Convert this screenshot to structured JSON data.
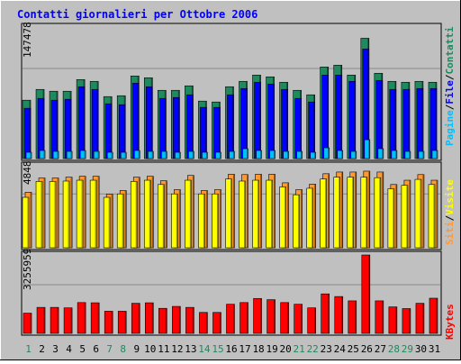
{
  "chart_data": [
    {
      "type": "bar",
      "title": "Contatti giornalieri per Ottobre 2006",
      "x": [
        "1",
        "2",
        "3",
        "4",
        "5",
        "6",
        "7",
        "8",
        "9",
        "10",
        "11",
        "12",
        "13",
        "14",
        "15",
        "16",
        "17",
        "18",
        "19",
        "20",
        "21",
        "22",
        "23",
        "24",
        "25",
        "26",
        "27",
        "28",
        "29",
        "30",
        "31"
      ],
      "weekend_days": [
        "1",
        "7",
        "8",
        "14",
        "15",
        "21",
        "22",
        "28",
        "29"
      ],
      "ymax_label": "147478",
      "ylim": [
        0,
        147478
      ],
      "right_label": [
        "Pagine",
        "/",
        "File",
        "/",
        "Contatti"
      ],
      "series": [
        {
          "name": "Contatti",
          "color": "#1e8a5e",
          "values": [
            65000,
            77000,
            75000,
            75000,
            88000,
            86000,
            69000,
            70000,
            92000,
            90000,
            76000,
            76000,
            81000,
            64000,
            63000,
            80000,
            86000,
            93000,
            91000,
            85000,
            76000,
            71000,
            102000,
            104000,
            93000,
            134000,
            95000,
            86000,
            85000,
            86000,
            85000
          ]
        },
        {
          "name": "File",
          "color": "#0000ff",
          "values": [
            56000,
            67000,
            65000,
            66000,
            80000,
            77000,
            61000,
            60000,
            84000,
            80000,
            67000,
            68000,
            71000,
            57000,
            57000,
            71000,
            78000,
            85000,
            83000,
            77000,
            67000,
            63000,
            93000,
            93000,
            86000,
            122000,
            87000,
            77000,
            77000,
            78000,
            78000
          ]
        },
        {
          "name": "Pagine",
          "color": "#00c0ff",
          "values": [
            7000,
            9000,
            8000,
            8000,
            9000,
            8000,
            7000,
            7000,
            9000,
            8000,
            8000,
            7000,
            8000,
            7000,
            7000,
            8000,
            11000,
            9000,
            9000,
            8000,
            8000,
            7000,
            12000,
            9000,
            8000,
            21000,
            11000,
            9000,
            8000,
            8000,
            9000
          ]
        }
      ]
    },
    {
      "type": "bar",
      "ymax_label": "4848",
      "ylim": [
        0,
        4848
      ],
      "right_label": [
        "Siti",
        "/",
        "Visite"
      ],
      "series": [
        {
          "name": "Visite",
          "color": "#ff9933",
          "values": [
            3250,
            4080,
            4080,
            4130,
            4180,
            4180,
            3140,
            3350,
            4130,
            4180,
            3920,
            3400,
            4230,
            3350,
            3400,
            4300,
            4280,
            4300,
            4300,
            3800,
            3400,
            3720,
            4330,
            4430,
            4430,
            4480,
            4430,
            3700,
            3950,
            4280,
            3950
          ]
        },
        {
          "name": "Siti",
          "color": "#ffff00",
          "values": [
            2950,
            3880,
            3880,
            3900,
            3950,
            3950,
            2950,
            3150,
            3880,
            3950,
            3700,
            3150,
            3950,
            3150,
            3150,
            4020,
            3900,
            3950,
            3950,
            3560,
            3100,
            3480,
            4020,
            4130,
            4130,
            4130,
            4100,
            3450,
            3650,
            4000,
            3700
          ]
        }
      ]
    },
    {
      "type": "bar",
      "ymax_label": "3255959",
      "ylim": [
        0,
        3255959
      ],
      "right_label": [
        "KBytes"
      ],
      "series": [
        {
          "name": "KBytes",
          "color": "#ff0000",
          "values": [
            840000,
            1080000,
            1080000,
            1060000,
            1280000,
            1270000,
            920000,
            920000,
            1250000,
            1270000,
            1040000,
            1120000,
            1080000,
            870000,
            870000,
            1210000,
            1280000,
            1450000,
            1400000,
            1280000,
            1210000,
            1060000,
            1640000,
            1530000,
            1350000,
            3255959,
            1350000,
            1100000,
            1030000,
            1250000,
            1460000
          ]
        }
      ]
    }
  ]
}
